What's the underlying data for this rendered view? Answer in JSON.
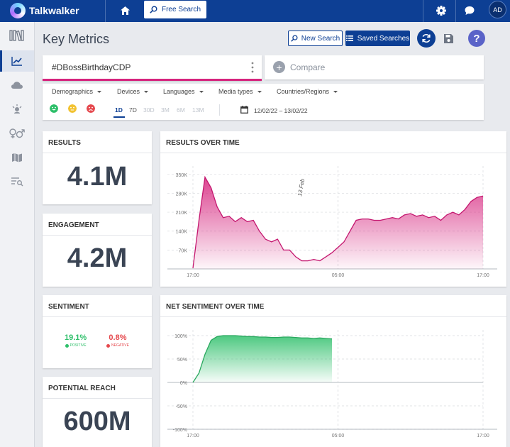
{
  "app": {
    "name": "Talkwalker",
    "user_initials": "AD"
  },
  "topbar": {
    "free_search_label": "Free Search"
  },
  "header": {
    "title": "Key Metrics",
    "new_search_label": "New Search",
    "saved_searches_label": "Saved Searches",
    "help_label": "?"
  },
  "query": {
    "text": "#DBossBirthdayCDP",
    "compare_label": "Compare",
    "compare_plus": "+"
  },
  "filters": {
    "dropdowns": [
      "Demographics",
      "Devices",
      "Languages",
      "Media types",
      "Countries/Regions"
    ],
    "ranges": [
      "1D",
      "7D",
      "30D",
      "3M",
      "6M",
      "13M"
    ],
    "active_range": "1D",
    "date_range": "12/02/22 – 13/02/22"
  },
  "colors": {
    "accent": "#0d3f94",
    "results": "#d6237d",
    "positive": "#2ebf6a",
    "negative": "#e5484d",
    "neutral": "#f2c230"
  },
  "metrics": {
    "results": {
      "title": "RESULTS",
      "value": "4.1M"
    },
    "engagement": {
      "title": "ENGAGEMENT",
      "value": "4.2M"
    },
    "sentiment": {
      "title": "SENTIMENT",
      "positive": "19.1%",
      "positive_label": "POSITIVE",
      "negative": "0.8%",
      "negative_label": "NEGATIVE"
    },
    "reach": {
      "title": "POTENTIAL REACH",
      "value": "600M"
    }
  },
  "chart_data": [
    {
      "type": "area",
      "title": "RESULTS OVER TIME",
      "xlabel": "",
      "ylabel": "",
      "x": [
        0,
        0.5,
        1,
        1.5,
        2,
        2.5,
        3,
        3.5,
        4,
        4.5,
        5,
        5.5,
        6,
        6.5,
        7,
        7.5,
        8,
        8.5,
        9,
        9.5,
        10,
        10.5,
        11,
        11.5,
        12,
        12.5,
        13,
        13.5,
        14,
        14.5,
        15,
        15.5,
        16,
        16.5,
        17,
        17.5,
        18,
        18.5,
        19,
        19.5,
        20,
        20.5,
        21,
        21.5,
        22,
        22.5,
        23,
        23.5,
        24
      ],
      "values": [
        3000,
        180000,
        340000,
        300000,
        230000,
        190000,
        195000,
        175000,
        190000,
        175000,
        180000,
        140000,
        110000,
        100000,
        110000,
        70000,
        70000,
        45000,
        30000,
        30000,
        35000,
        30000,
        45000,
        60000,
        80000,
        100000,
        140000,
        180000,
        185000,
        185000,
        180000,
        180000,
        185000,
        190000,
        185000,
        200000,
        205000,
        195000,
        200000,
        190000,
        195000,
        180000,
        200000,
        210000,
        200000,
        220000,
        250000,
        265000,
        270000
      ],
      "y_ticks": [
        "70K",
        "140K",
        "210K",
        "280K",
        "350K"
      ],
      "x_ticks": [
        "17:00",
        "05:00",
        "17:00"
      ],
      "ylim": [
        0,
        360000
      ],
      "annotation": "13 Feb",
      "grid": true
    },
    {
      "type": "area",
      "title": "NET SENTIMENT OVER TIME",
      "xlabel": "",
      "ylabel": "",
      "x": [
        0,
        0.5,
        1,
        1.5,
        2,
        2.5,
        3,
        3.5,
        4,
        4.5,
        5,
        5.5,
        6,
        6.5,
        7,
        7.5,
        8,
        8.5,
        9,
        9.5,
        10,
        10.5,
        11,
        11.5
      ],
      "values": [
        0,
        20,
        60,
        90,
        98,
        100,
        100,
        100,
        99,
        98,
        98,
        97,
        97,
        96,
        96,
        97,
        97,
        96,
        95,
        95,
        94,
        95,
        94,
        93
      ],
      "y_ticks": [
        "-100%",
        "-50%",
        "0%",
        "50%",
        "100%"
      ],
      "x_ticks": [
        "17:00",
        "05:00",
        "17:00"
      ],
      "ylim": [
        -100,
        100
      ],
      "x_range": [
        0,
        24
      ],
      "grid": true
    }
  ]
}
